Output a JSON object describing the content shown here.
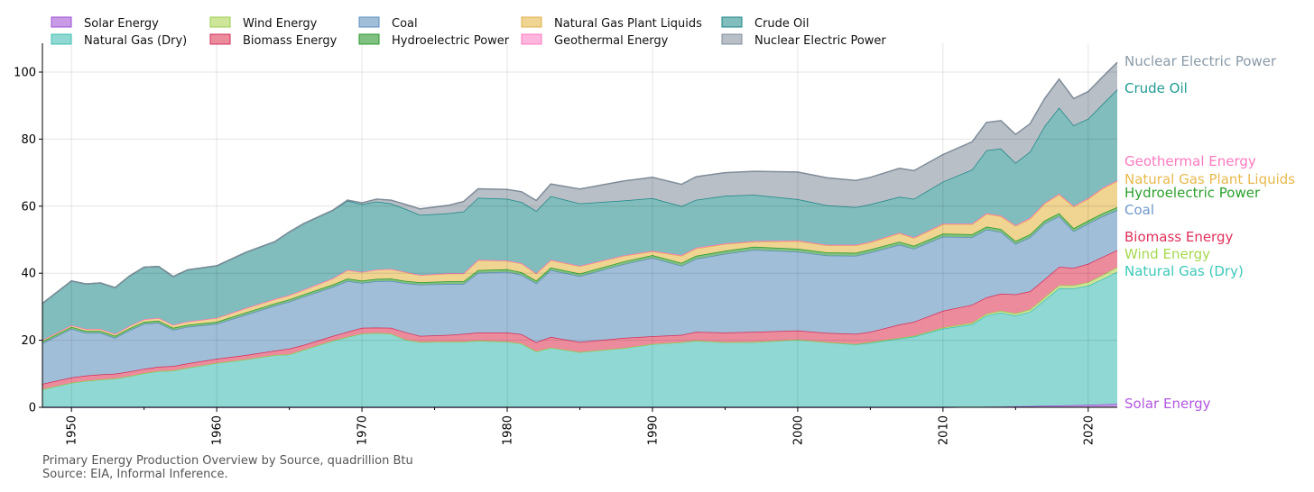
{
  "chart_data": {
    "type": "area",
    "stacked": true,
    "title": "Primary Energy Production Overview by Source, quadrillion Btu",
    "source": "Source: EIA, Informal Inference.",
    "xlabel": "",
    "ylabel": "",
    "xlim": [
      1948,
      2022
    ],
    "ylim": [
      0,
      108.6
    ],
    "xticks": [
      1950,
      1960,
      1970,
      1980,
      1990,
      2000,
      2010,
      2020
    ],
    "yticks": [
      0,
      20,
      40,
      60,
      80,
      100
    ],
    "grid": true,
    "legend": "top-left, above plot, 2 rows",
    "x": [
      1948,
      1950,
      1951,
      1952,
      1953,
      1954,
      1955,
      1956,
      1957,
      1958,
      1960,
      1962,
      1964,
      1965,
      1966,
      1968,
      1969,
      1970,
      1971,
      1972,
      1973,
      1974,
      1976,
      1977,
      1978,
      1980,
      1981,
      1982,
      1983,
      1985,
      1988,
      1990,
      1992,
      1993,
      1995,
      1997,
      2000,
      2002,
      2004,
      2005,
      2007,
      2008,
      2010,
      2012,
      2013,
      2014,
      2015,
      2016,
      2017,
      2018,
      2019,
      2020,
      2021,
      2022
    ],
    "series": [
      {
        "name": "Solar Energy",
        "fill": "#c99be6",
        "line": "#9c4fd6",
        "label_color": "#b257e0",
        "values": [
          0,
          0,
          0,
          0,
          0,
          0,
          0,
          0,
          0,
          0,
          0,
          0,
          0,
          0,
          0,
          0,
          0,
          0,
          0,
          0,
          0,
          0,
          0,
          0,
          0,
          0,
          0,
          0,
          0,
          0,
          0,
          0,
          0,
          0,
          0,
          0,
          0,
          0,
          0,
          0,
          0,
          0,
          0,
          0.1,
          0.15,
          0.2,
          0.3,
          0.35,
          0.45,
          0.55,
          0.65,
          0.75,
          0.85,
          1.0
        ]
      },
      {
        "name": "Natural Gas (Dry)",
        "fill": "#8fd8d3",
        "line": "#3cbfae",
        "label_color": "#3cc8b8",
        "values": [
          5.4,
          7.3,
          7.9,
          8.3,
          8.6,
          9.3,
          10.2,
          10.8,
          11,
          11.8,
          13.2,
          14.3,
          15.6,
          15.8,
          17.2,
          19.9,
          21,
          22,
          22.2,
          22,
          20.2,
          19.5,
          19.6,
          19.6,
          19.9,
          19.6,
          19,
          16.7,
          17.8,
          16.5,
          17.7,
          18.9,
          19.4,
          19.9,
          19.4,
          19.5,
          20.2,
          19.4,
          18.8,
          19.25,
          20.55,
          21.1,
          23.5,
          24.65,
          27.25,
          28.05,
          27.1,
          28.15,
          31.55,
          35,
          34.85,
          35.55,
          37.45,
          39.4
        ]
      },
      {
        "name": "Wind Energy",
        "fill": "#cfe69a",
        "line": "#9acd4f",
        "label_color": "#a6d94e",
        "values": [
          0,
          0,
          0,
          0,
          0,
          0,
          0,
          0,
          0,
          0,
          0,
          0,
          0,
          0,
          0,
          0,
          0,
          0,
          0,
          0,
          0,
          0,
          0,
          0,
          0,
          0,
          0,
          0,
          0,
          0,
          0,
          0,
          0,
          0,
          0,
          0,
          0,
          0,
          0.1,
          0.15,
          0.15,
          0.2,
          0.3,
          0.45,
          0.5,
          0.55,
          0.6,
          0.7,
          0.8,
          0.85,
          0.9,
          1.0,
          1.2,
          1.4
        ]
      },
      {
        "name": "Biomass Energy",
        "fill": "#ec8b9c",
        "line": "#d02f5b",
        "label_color": "#e0305a",
        "values": [
          1.6,
          1.6,
          1.6,
          1.5,
          1.4,
          1.4,
          1.3,
          1.3,
          1.3,
          1.3,
          1.3,
          1.3,
          1.3,
          1.7,
          1.4,
          1.4,
          1.5,
          1.7,
          1.6,
          1.7,
          2.2,
          1.8,
          2,
          2.3,
          2.4,
          2.7,
          2.8,
          2.7,
          3.2,
          3,
          3,
          2.3,
          2.2,
          2.6,
          2.9,
          3,
          2.7,
          2.8,
          3,
          3.1,
          4,
          4.2,
          5,
          5.4,
          4.9,
          5.1,
          5.7,
          5.4,
          5.4,
          5.5,
          5.2,
          5.5,
          5.4,
          5.1
        ]
      },
      {
        "name": "Coal",
        "fill": "#a1bed9",
        "line": "#5d8fc0",
        "label_color": "#6f98c8",
        "values": [
          12.1,
          14.5,
          12.7,
          12.4,
          10.7,
          12.3,
          13.4,
          13.1,
          10.8,
          10.9,
          10.4,
          12,
          13.4,
          14,
          14.4,
          14.6,
          15.2,
          13.4,
          13.8,
          14,
          14.6,
          15.3,
          15.2,
          14.9,
          17.8,
          18.1,
          17.7,
          17.6,
          19.9,
          19.6,
          22,
          23.4,
          20.6,
          21.8,
          23.5,
          24.5,
          23.5,
          23.1,
          23.3,
          23.7,
          23.8,
          21.8,
          22.1,
          20.1,
          20.2,
          18.4,
          15,
          16.1,
          16.6,
          15.1,
          10.9,
          12,
          12.1,
          11.9
        ]
      },
      {
        "name": "Hydroelectric Power",
        "fill": "#80c080",
        "line": "#2a9a2a",
        "label_color": "#2ca02c",
        "values": [
          0.6,
          0.6,
          0.6,
          0.6,
          0.6,
          0.6,
          0.6,
          0.6,
          0.6,
          0.6,
          0.6,
          0.7,
          0.7,
          0.7,
          0.7,
          0.7,
          0.7,
          0.7,
          0.7,
          0.7,
          0.7,
          0.7,
          0.8,
          0.8,
          0.8,
          0.8,
          0.8,
          0.8,
          0.8,
          0.8,
          0.8,
          0.8,
          0.9,
          0.9,
          0.9,
          0.9,
          0.9,
          0.9,
          0.9,
          0.9,
          0.9,
          0.9,
          0.9,
          0.9,
          0.9,
          0.9,
          0.9,
          0.9,
          0.9,
          0.9,
          0.9,
          0.9,
          0.9,
          0.9
        ]
      },
      {
        "name": "Natural Gas Plant Liquids",
        "fill": "#efd492",
        "line": "#e2b04e",
        "label_color": "#e8b94e",
        "values": [
          0.4,
          0.5,
          0.6,
          0.6,
          0.6,
          0.7,
          0.8,
          0.9,
          0.9,
          1.0,
          1.15,
          1.25,
          1.25,
          1.25,
          1.35,
          1.85,
          2.55,
          2.55,
          2.75,
          2.85,
          2.6,
          2.1,
          2.3,
          2.3,
          3.0,
          2.5,
          2.6,
          2.1,
          2.2,
          2.2,
          1.7,
          1.1,
          2.1,
          2.2,
          2.0,
          1.5,
          2.3,
          2.1,
          2.2,
          2.1,
          2.5,
          2.3,
          2.8,
          3.0,
          3.8,
          3.8,
          4.5,
          4.7,
          5.1,
          5.6,
          6.5,
          6.5,
          7.4,
          7.8
        ]
      },
      {
        "name": "Geothermal Energy",
        "fill": "#ffb6de",
        "line": "#ff78c0",
        "label_color": "#ff79bf",
        "values": [
          0,
          0,
          0,
          0,
          0,
          0,
          0,
          0,
          0,
          0,
          0.05,
          0.05,
          0.05,
          0.05,
          0.05,
          0.05,
          0.05,
          0.05,
          0.05,
          0.05,
          0.1,
          0.1,
          0.1,
          0.1,
          0.1,
          0.1,
          0.1,
          0.1,
          0.1,
          0.1,
          0.1,
          0.2,
          0.2,
          0.2,
          0.2,
          0.2,
          0.2,
          0.2,
          0.2,
          0.2,
          0.2,
          0.2,
          0.2,
          0.2,
          0.2,
          0.2,
          0.2,
          0.2,
          0.2,
          0.2,
          0.2,
          0.2,
          0.2,
          0.2
        ]
      },
      {
        "name": "Crude Oil",
        "fill": "#80bdbc",
        "line": "#1f8587",
        "label_color": "#1f9a94",
        "values": [
          10.9,
          13.2,
          13.4,
          13.7,
          13.8,
          14.9,
          15.5,
          15.3,
          14.4,
          15.4,
          15.5,
          16.6,
          17.1,
          18.8,
          19.7,
          20.3,
          20.6,
          20.2,
          20.3,
          19.5,
          18.8,
          17.9,
          17.9,
          18.4,
          18.5,
          18.4,
          18.2,
          18.6,
          19,
          18.6,
          16.4,
          15.7,
          14.6,
          14.3,
          14.2,
          13.8,
          12.3,
          11.8,
          11.2,
          11.2,
          10.7,
          11.5,
          12.5,
          16.1,
          18.8,
          20,
          18.6,
          19.8,
          22.9,
          25.7,
          24,
          23.7,
          25,
          27.1
        ]
      },
      {
        "name": "Nuclear Electric Power",
        "fill": "#b8bfc6",
        "line": "#7f8c99",
        "label_color": "#8a9aa8",
        "values": [
          0,
          0,
          0,
          0,
          0,
          0,
          0,
          0,
          0,
          0,
          0,
          0,
          0,
          0,
          0,
          0,
          0.2,
          0.4,
          0.7,
          1.0,
          1.3,
          1.8,
          2.4,
          3.0,
          2.7,
          2.8,
          3.1,
          3.1,
          3.6,
          4.3,
          5.8,
          6.2,
          6.5,
          6.9,
          6.9,
          7,
          8.1,
          8.2,
          8,
          8,
          8.5,
          8.4,
          8.1,
          8.3,
          8.3,
          8.3,
          8.5,
          8.3,
          8.2,
          8.5,
          8,
          8.1,
          8.1,
          8.1
        ]
      }
    ]
  }
}
